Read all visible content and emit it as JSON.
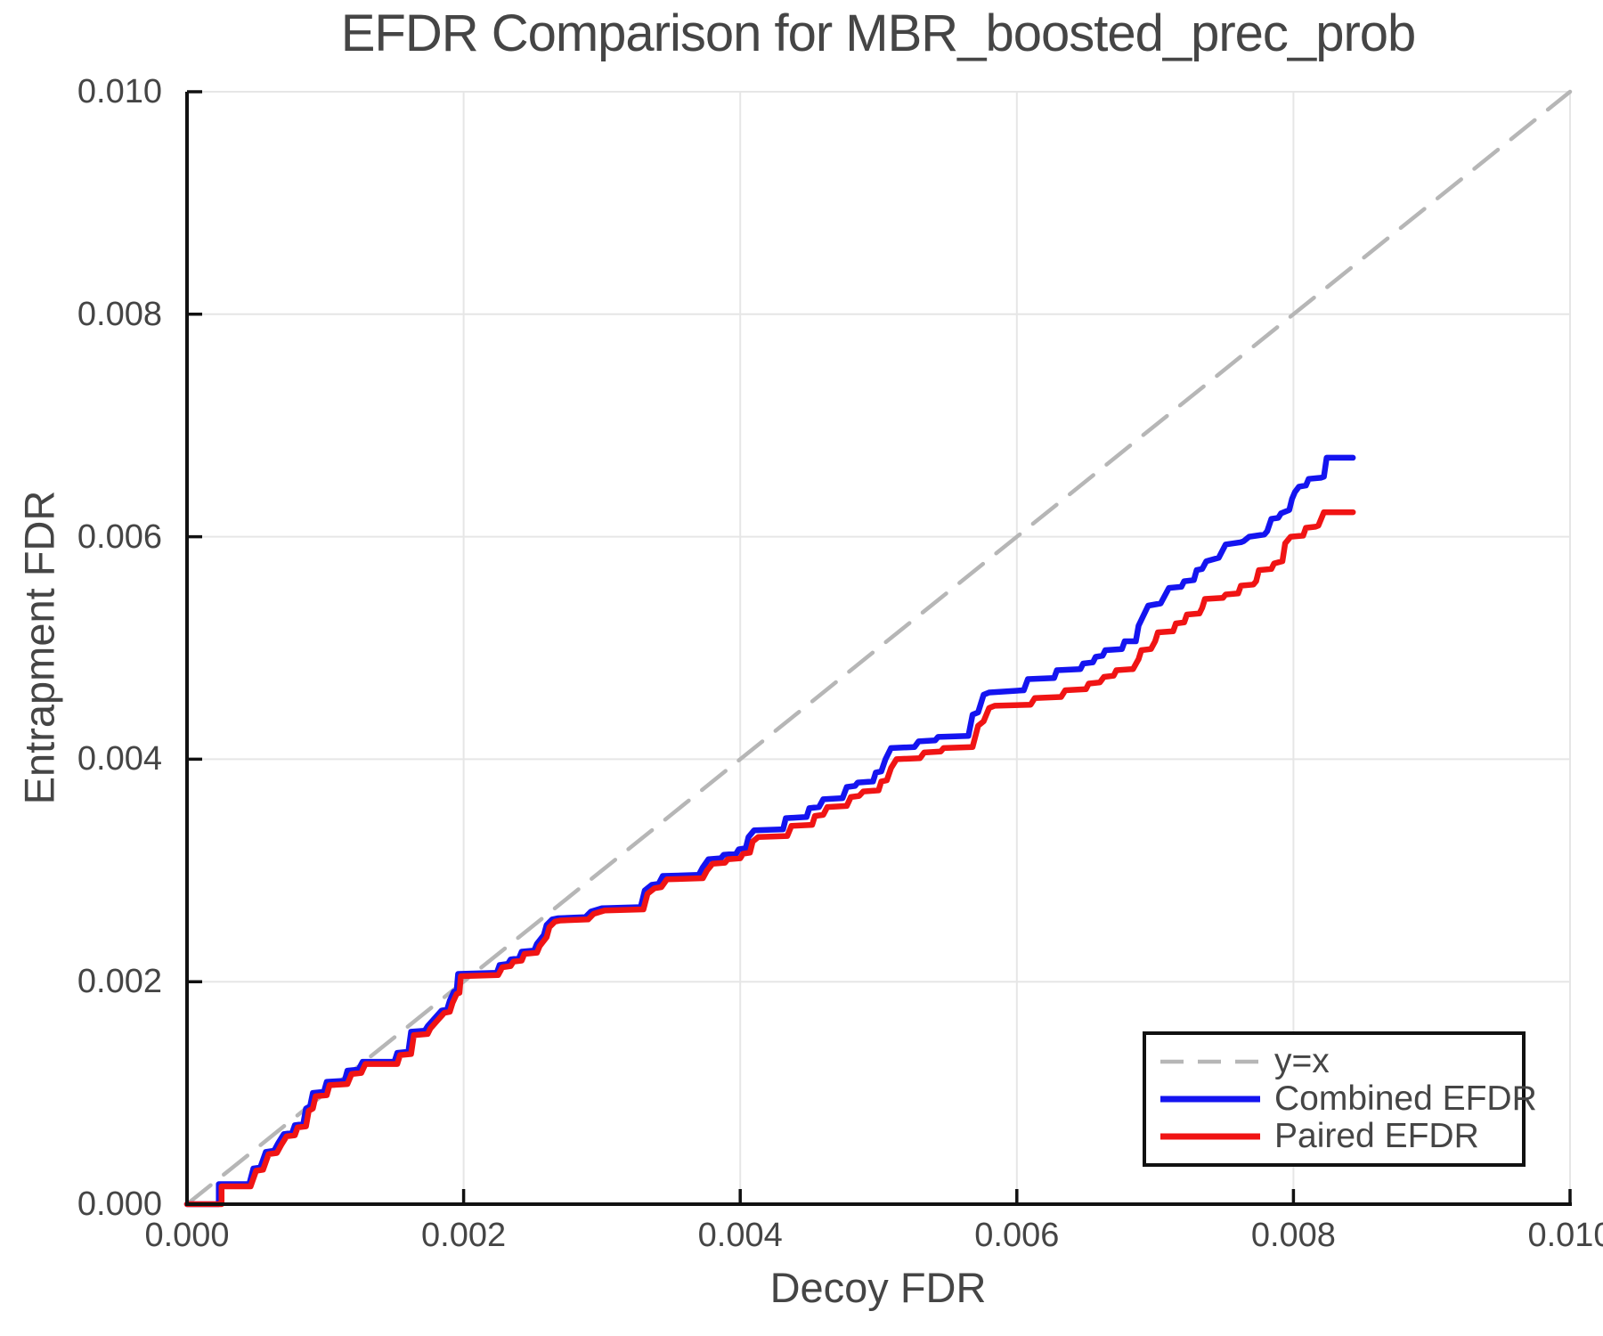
{
  "chart_data": {
    "type": "line",
    "title": "EFDR Comparison for MBR_boosted_prec_prob",
    "xlabel": "Decoy FDR",
    "ylabel": "Entrapment FDR",
    "xlim": [
      0.0,
      0.01
    ],
    "ylim": [
      0.0,
      0.01
    ],
    "x_ticks": {
      "values": [
        0.0,
        0.002,
        0.004,
        0.006,
        0.008,
        0.01
      ],
      "labels": [
        "0.000",
        "0.002",
        "0.004",
        "0.006",
        "0.008",
        "0.010"
      ]
    },
    "y_ticks": {
      "values": [
        0.0,
        0.002,
        0.004,
        0.006,
        0.008,
        0.01
      ],
      "labels": [
        "0.000",
        "0.002",
        "0.004",
        "0.006",
        "0.008",
        "0.010"
      ]
    },
    "grid": true,
    "legend_position": "lower right",
    "series": [
      {
        "name": "y=x",
        "style": "dashed",
        "color": "#b6b6b6",
        "points": [
          [
            0.0,
            0.0
          ],
          [
            0.01,
            0.01
          ]
        ]
      },
      {
        "name": "Combined EFDR",
        "style": "solid",
        "color": "#1414f0",
        "points": [
          [
            0,
            0
          ],
          [
            0.00023,
            0
          ],
          [
            0.00023,
            0.00018
          ],
          [
            0.00045,
            0.00018
          ],
          [
            0.00048,
            0.00032
          ],
          [
            0.00053,
            0.00033
          ],
          [
            0.00057,
            0.00047
          ],
          [
            0.00063,
            0.00048
          ],
          [
            0.00066,
            0.00055
          ],
          [
            0.0007,
            0.00063
          ],
          [
            0.00076,
            0.00064
          ],
          [
            0.00078,
            0.00071
          ],
          [
            0.00084,
            0.00072
          ],
          [
            0.00086,
            0.00086
          ],
          [
            0.00089,
            0.00088
          ],
          [
            0.00091,
            0.001
          ],
          [
            0.00099,
            0.00101
          ],
          [
            0.00101,
            0.0011
          ],
          [
            0.00114,
            0.00111
          ],
          [
            0.00116,
            0.0012
          ],
          [
            0.00124,
            0.00121
          ],
          [
            0.00127,
            0.00128
          ],
          [
            0.0015,
            0.00128
          ],
          [
            0.00152,
            0.00136
          ],
          [
            0.0016,
            0.00137
          ],
          [
            0.00162,
            0.00155
          ],
          [
            0.00172,
            0.00156
          ],
          [
            0.00174,
            0.0016
          ],
          [
            0.00179,
            0.00167
          ],
          [
            0.00184,
            0.00174
          ],
          [
            0.00188,
            0.00175
          ],
          [
            0.0019,
            0.00183
          ],
          [
            0.00193,
            0.00191
          ],
          [
            0.00195,
            0.00192
          ],
          [
            0.00196,
            0.00207
          ],
          [
            0.00224,
            0.00208
          ],
          [
            0.00226,
            0.00215
          ],
          [
            0.00232,
            0.00216
          ],
          [
            0.00234,
            0.0022
          ],
          [
            0.0024,
            0.00221
          ],
          [
            0.00242,
            0.00227
          ],
          [
            0.00251,
            0.00228
          ],
          [
            0.00253,
            0.00234
          ],
          [
            0.00258,
            0.00242
          ],
          [
            0.0026,
            0.00251
          ],
          [
            0.00264,
            0.00256
          ],
          [
            0.00268,
            0.00257
          ],
          [
            0.00288,
            0.00258
          ],
          [
            0.00292,
            0.00263
          ],
          [
            0.003,
            0.00266
          ],
          [
            0.00328,
            0.00267
          ],
          [
            0.00331,
            0.00282
          ],
          [
            0.00336,
            0.00287
          ],
          [
            0.00341,
            0.00288
          ],
          [
            0.00344,
            0.00295
          ],
          [
            0.0037,
            0.00296
          ],
          [
            0.00373,
            0.00303
          ],
          [
            0.00377,
            0.0031
          ],
          [
            0.00386,
            0.00311
          ],
          [
            0.00388,
            0.00314
          ],
          [
            0.00397,
            0.00315
          ],
          [
            0.00399,
            0.00319
          ],
          [
            0.00404,
            0.0032
          ],
          [
            0.00406,
            0.0033
          ],
          [
            0.0041,
            0.00336
          ],
          [
            0.00431,
            0.00337
          ],
          [
            0.00433,
            0.00347
          ],
          [
            0.00448,
            0.00348
          ],
          [
            0.0045,
            0.00356
          ],
          [
            0.00457,
            0.00357
          ],
          [
            0.0046,
            0.00364
          ],
          [
            0.00474,
            0.00365
          ],
          [
            0.00477,
            0.00375
          ],
          [
            0.00483,
            0.00376
          ],
          [
            0.00485,
            0.00379
          ],
          [
            0.00496,
            0.0038
          ],
          [
            0.00498,
            0.00388
          ],
          [
            0.00502,
            0.00389
          ],
          [
            0.00505,
            0.004
          ],
          [
            0.00509,
            0.0041
          ],
          [
            0.00526,
            0.00411
          ],
          [
            0.00529,
            0.00416
          ],
          [
            0.00541,
            0.00417
          ],
          [
            0.00543,
            0.0042
          ],
          [
            0.00565,
            0.00421
          ],
          [
            0.00568,
            0.0044
          ],
          [
            0.00572,
            0.00442
          ],
          [
            0.00576,
            0.00458
          ],
          [
            0.0058,
            0.0046
          ],
          [
            0.00605,
            0.00462
          ],
          [
            0.00608,
            0.00472
          ],
          [
            0.00627,
            0.00473
          ],
          [
            0.00629,
            0.0048
          ],
          [
            0.00646,
            0.00481
          ],
          [
            0.00648,
            0.00486
          ],
          [
            0.00655,
            0.00487
          ],
          [
            0.00657,
            0.00492
          ],
          [
            0.00662,
            0.00493
          ],
          [
            0.00664,
            0.00498
          ],
          [
            0.00676,
            0.00499
          ],
          [
            0.00678,
            0.00506
          ],
          [
            0.00686,
            0.00506
          ],
          [
            0.00688,
            0.0052
          ],
          [
            0.00695,
            0.00538
          ],
          [
            0.00704,
            0.0054
          ],
          [
            0.0071,
            0.00554
          ],
          [
            0.00719,
            0.00555
          ],
          [
            0.00721,
            0.0056
          ],
          [
            0.00728,
            0.00561
          ],
          [
            0.0073,
            0.0057
          ],
          [
            0.00734,
            0.00571
          ],
          [
            0.00737,
            0.00578
          ],
          [
            0.00746,
            0.00581
          ],
          [
            0.00751,
            0.00593
          ],
          [
            0.00762,
            0.00595
          ],
          [
            0.00764,
            0.00596
          ],
          [
            0.00768,
            0.006
          ],
          [
            0.00779,
            0.00602
          ],
          [
            0.00781,
            0.00605
          ],
          [
            0.00784,
            0.00616
          ],
          [
            0.00789,
            0.00617
          ],
          [
            0.00791,
            0.00621
          ],
          [
            0.00797,
            0.00624
          ],
          [
            0.00799,
            0.00634
          ],
          [
            0.00801,
            0.0064
          ],
          [
            0.00804,
            0.00645
          ],
          [
            0.00809,
            0.00646
          ],
          [
            0.00811,
            0.00652
          ],
          [
            0.0082,
            0.00653
          ],
          [
            0.00822,
            0.00654
          ],
          [
            0.00824,
            0.00671
          ],
          [
            0.00843,
            0.00671
          ]
        ]
      },
      {
        "name": "Paired EFDR",
        "style": "solid",
        "color": "#f01414",
        "points": [
          [
            0,
            0
          ],
          [
            0.00025,
            0
          ],
          [
            0.00025,
            0.00016
          ],
          [
            0.00046,
            0.00016
          ],
          [
            0.0005,
            0.0003
          ],
          [
            0.00055,
            0.00031
          ],
          [
            0.00059,
            0.00045
          ],
          [
            0.00065,
            0.00046
          ],
          [
            0.00068,
            0.00053
          ],
          [
            0.00072,
            0.00061
          ],
          [
            0.00078,
            0.00062
          ],
          [
            0.0008,
            0.00069
          ],
          [
            0.00086,
            0.0007
          ],
          [
            0.00088,
            0.00084
          ],
          [
            0.00091,
            0.00086
          ],
          [
            0.00093,
            0.00097
          ],
          [
            0.00101,
            0.00098
          ],
          [
            0.00103,
            0.00107
          ],
          [
            0.00116,
            0.00108
          ],
          [
            0.00119,
            0.00117
          ],
          [
            0.00126,
            0.00118
          ],
          [
            0.00129,
            0.00126
          ],
          [
            0.00152,
            0.00126
          ],
          [
            0.00154,
            0.00134
          ],
          [
            0.00162,
            0.00135
          ],
          [
            0.00164,
            0.00152
          ],
          [
            0.00174,
            0.00153
          ],
          [
            0.00176,
            0.00158
          ],
          [
            0.00181,
            0.00165
          ],
          [
            0.00186,
            0.00172
          ],
          [
            0.0019,
            0.00173
          ],
          [
            0.00192,
            0.00181
          ],
          [
            0.00195,
            0.00189
          ],
          [
            0.00197,
            0.0019
          ],
          [
            0.00198,
            0.00205
          ],
          [
            0.00225,
            0.00206
          ],
          [
            0.00228,
            0.00213
          ],
          [
            0.00234,
            0.00214
          ],
          [
            0.00236,
            0.00218
          ],
          [
            0.00242,
            0.00219
          ],
          [
            0.00244,
            0.00225
          ],
          [
            0.00253,
            0.00226
          ],
          [
            0.00255,
            0.00232
          ],
          [
            0.0026,
            0.0024
          ],
          [
            0.00262,
            0.00249
          ],
          [
            0.00266,
            0.00254
          ],
          [
            0.0027,
            0.00255
          ],
          [
            0.0029,
            0.00256
          ],
          [
            0.00294,
            0.00261
          ],
          [
            0.00302,
            0.00264
          ],
          [
            0.0033,
            0.00265
          ],
          [
            0.00333,
            0.00279
          ],
          [
            0.00338,
            0.00284
          ],
          [
            0.00343,
            0.00285
          ],
          [
            0.00347,
            0.00292
          ],
          [
            0.00373,
            0.00293
          ],
          [
            0.00376,
            0.003
          ],
          [
            0.0038,
            0.00306
          ],
          [
            0.00389,
            0.00307
          ],
          [
            0.00391,
            0.0031
          ],
          [
            0.004,
            0.00311
          ],
          [
            0.00402,
            0.00315
          ],
          [
            0.00407,
            0.00316
          ],
          [
            0.00409,
            0.00326
          ],
          [
            0.00413,
            0.0033
          ],
          [
            0.00434,
            0.00331
          ],
          [
            0.00437,
            0.0034
          ],
          [
            0.00452,
            0.00341
          ],
          [
            0.00454,
            0.00349
          ],
          [
            0.0046,
            0.0035
          ],
          [
            0.00463,
            0.00357
          ],
          [
            0.00477,
            0.00358
          ],
          [
            0.0048,
            0.00366
          ],
          [
            0.00486,
            0.00367
          ],
          [
            0.00489,
            0.00371
          ],
          [
            0.005,
            0.00372
          ],
          [
            0.00502,
            0.0038
          ],
          [
            0.00506,
            0.00381
          ],
          [
            0.00509,
            0.00392
          ],
          [
            0.00513,
            0.004
          ],
          [
            0.0053,
            0.00401
          ],
          [
            0.00533,
            0.00406
          ],
          [
            0.00545,
            0.00407
          ],
          [
            0.00547,
            0.0041
          ],
          [
            0.00568,
            0.00411
          ],
          [
            0.00572,
            0.0043
          ],
          [
            0.00576,
            0.00434
          ],
          [
            0.0058,
            0.00446
          ],
          [
            0.00584,
            0.00448
          ],
          [
            0.0061,
            0.00449
          ],
          [
            0.00613,
            0.00455
          ],
          [
            0.00632,
            0.00456
          ],
          [
            0.00635,
            0.00462
          ],
          [
            0.0065,
            0.00463
          ],
          [
            0.00652,
            0.00468
          ],
          [
            0.0066,
            0.00469
          ],
          [
            0.00663,
            0.00474
          ],
          [
            0.0067,
            0.00475
          ],
          [
            0.00672,
            0.0048
          ],
          [
            0.00684,
            0.00481
          ],
          [
            0.00688,
            0.0049
          ],
          [
            0.0069,
            0.00498
          ],
          [
            0.00697,
            0.00499
          ],
          [
            0.007,
            0.00506
          ],
          [
            0.00702,
            0.00514
          ],
          [
            0.00713,
            0.00515
          ],
          [
            0.00715,
            0.00522
          ],
          [
            0.00721,
            0.00523
          ],
          [
            0.00723,
            0.0053
          ],
          [
            0.00732,
            0.00531
          ],
          [
            0.00734,
            0.00536
          ],
          [
            0.00736,
            0.00544
          ],
          [
            0.00749,
            0.00545
          ],
          [
            0.00751,
            0.00548
          ],
          [
            0.0076,
            0.00549
          ],
          [
            0.00762,
            0.00556
          ],
          [
            0.00771,
            0.00557
          ],
          [
            0.00773,
            0.0056
          ],
          [
            0.00775,
            0.0057
          ],
          [
            0.00784,
            0.00571
          ],
          [
            0.00786,
            0.00576
          ],
          [
            0.00792,
            0.00578
          ],
          [
            0.00794,
            0.00594
          ],
          [
            0.00798,
            0.006
          ],
          [
            0.00807,
            0.00601
          ],
          [
            0.00809,
            0.00608
          ],
          [
            0.00816,
            0.00609
          ],
          [
            0.00818,
            0.0061
          ],
          [
            0.00822,
            0.00622
          ],
          [
            0.00843,
            0.00622
          ]
        ]
      }
    ]
  }
}
